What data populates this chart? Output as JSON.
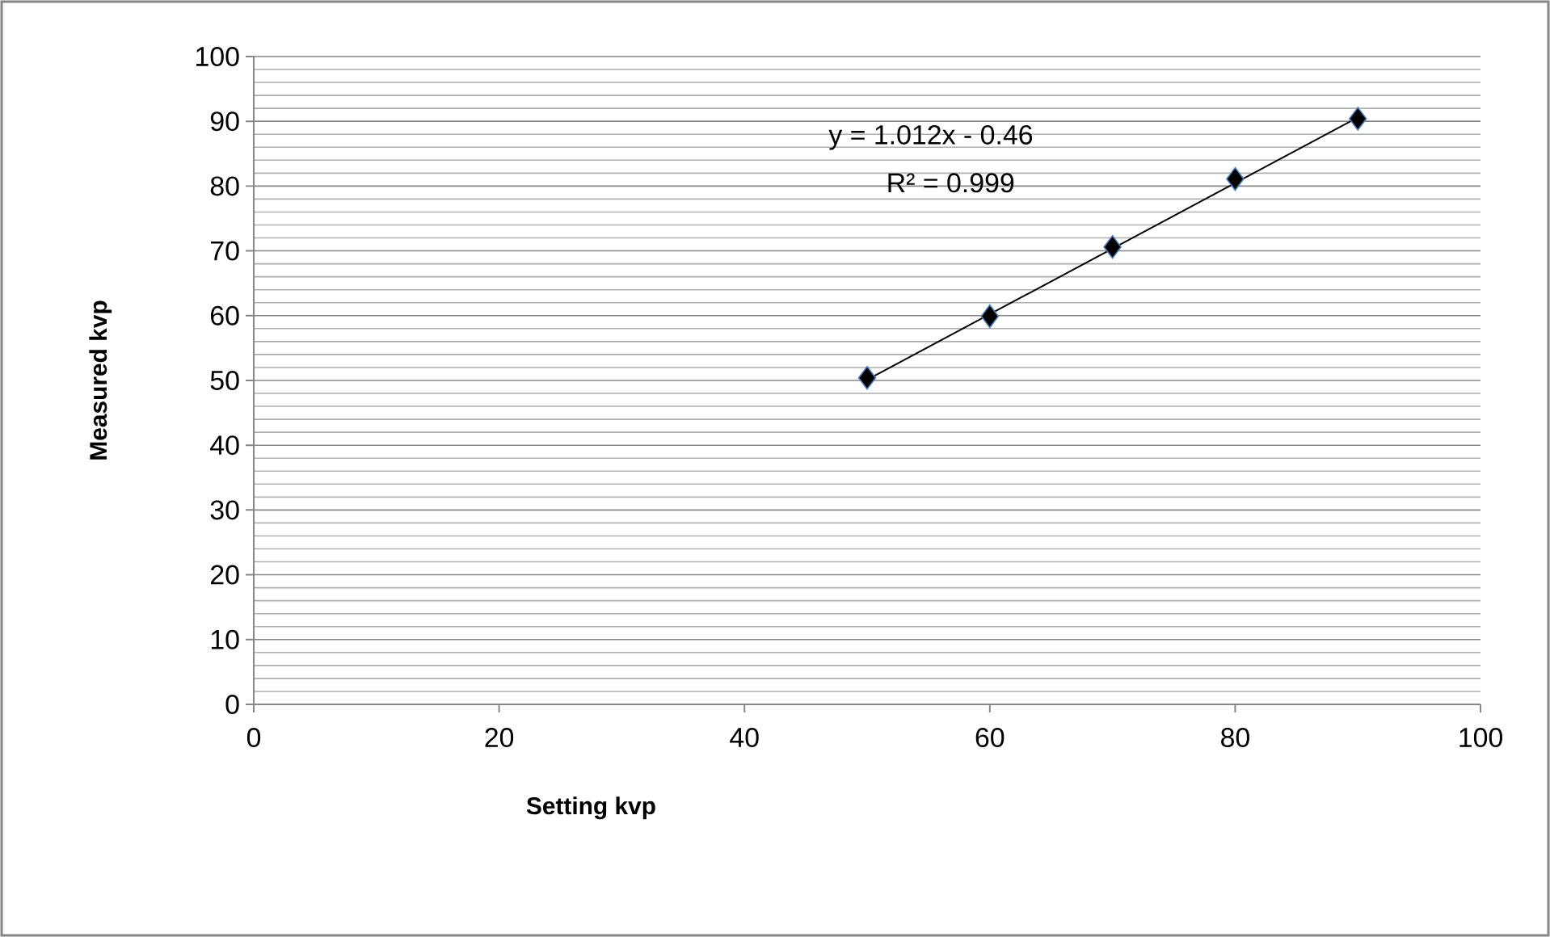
{
  "chart_data": {
    "type": "scatter",
    "xlabel": "Setting kvp",
    "ylabel": "Measured kvp",
    "xlim": [
      0,
      100
    ],
    "xticks": [
      0,
      20,
      40,
      60,
      80,
      100
    ],
    "ylim": [
      0,
      100
    ],
    "yticks": [
      0,
      10,
      20,
      30,
      40,
      50,
      60,
      70,
      80,
      90,
      100
    ],
    "grid": "y",
    "annotations": [
      "y = 1.012x - 0.46",
      "R² = 0.999"
    ],
    "series": [
      {
        "color": "#000000",
        "marker": "diamond",
        "x": [
          50,
          60,
          70,
          80,
          90
        ],
        "values": [
          50.4,
          59.9,
          70.6,
          81.1,
          90.4
        ]
      },
      {
        "type": "line",
        "color": "#000000",
        "marker": "none",
        "line_style": "solid",
        "x": [
          50,
          90
        ],
        "values": [
          50.1,
          90.6
        ]
      }
    ]
  }
}
